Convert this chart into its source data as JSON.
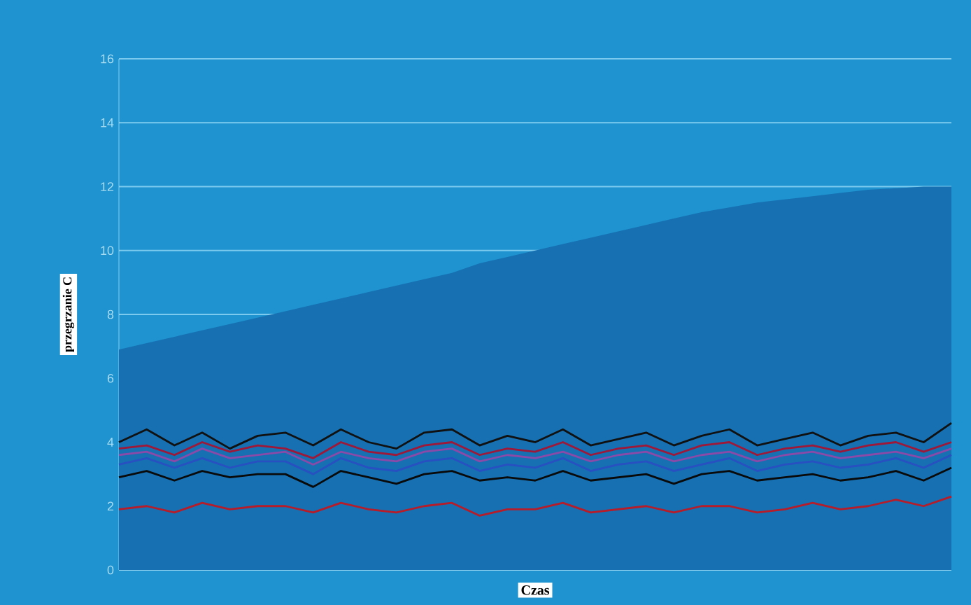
{
  "chart_data": {
    "type": "line",
    "xlabel": "Czas",
    "ylabel": "przegrzanie C",
    "categories": [
      null,
      null,
      null,
      null,
      null,
      null,
      null,
      null,
      null,
      null,
      null,
      null,
      null,
      null,
      null,
      null,
      null,
      null,
      null,
      null,
      null,
      null,
      null,
      null,
      null,
      null,
      null,
      null,
      null,
      null,
      null
    ],
    "ylim": [
      0,
      16
    ],
    "yticks": [
      0,
      2,
      4,
      6,
      8,
      10,
      12,
      14,
      16
    ],
    "grid": "y",
    "marker": "none",
    "line_style": "solid",
    "series": [
      {
        "type": "area",
        "color": "#1670b2",
        "values": [
          6.9,
          7.1,
          7.3,
          7.5,
          7.7,
          7.9,
          8.1,
          8.3,
          8.5,
          8.7,
          8.9,
          9.1,
          9.3,
          9.6,
          9.8,
          10.0,
          10.2,
          10.4,
          10.6,
          10.8,
          11.0,
          11.2,
          11.35,
          11.5,
          11.6,
          11.7,
          11.8,
          11.9,
          11.95,
          12.0,
          12.0
        ]
      },
      {
        "color": "#111111",
        "values": [
          4.0,
          4.4,
          3.9,
          4.3,
          3.8,
          4.2,
          4.3,
          3.9,
          4.4,
          4.0,
          3.8,
          4.3,
          4.4,
          3.9,
          4.2,
          4.0,
          4.4,
          3.9,
          4.1,
          4.3,
          3.9,
          4.2,
          4.4,
          3.9,
          4.1,
          4.3,
          3.9,
          4.2,
          4.3,
          4.0,
          4.6
        ]
      },
      {
        "color": "#a01838",
        "values": [
          3.8,
          3.9,
          3.6,
          4.0,
          3.7,
          3.9,
          3.8,
          3.5,
          4.0,
          3.7,
          3.6,
          3.9,
          4.0,
          3.6,
          3.8,
          3.7,
          4.0,
          3.6,
          3.8,
          3.9,
          3.6,
          3.9,
          4.0,
          3.6,
          3.8,
          3.9,
          3.7,
          3.9,
          4.0,
          3.7,
          4.0
        ]
      },
      {
        "color": "#8a4aa8",
        "values": [
          3.6,
          3.7,
          3.4,
          3.8,
          3.5,
          3.6,
          3.7,
          3.3,
          3.7,
          3.5,
          3.4,
          3.7,
          3.8,
          3.4,
          3.6,
          3.5,
          3.7,
          3.4,
          3.6,
          3.7,
          3.4,
          3.6,
          3.7,
          3.4,
          3.6,
          3.7,
          3.5,
          3.6,
          3.7,
          3.5,
          3.8
        ]
      },
      {
        "color": "#2850c0",
        "values": [
          3.3,
          3.5,
          3.2,
          3.5,
          3.2,
          3.4,
          3.4,
          3.0,
          3.5,
          3.2,
          3.1,
          3.4,
          3.5,
          3.1,
          3.3,
          3.2,
          3.5,
          3.1,
          3.3,
          3.4,
          3.1,
          3.3,
          3.5,
          3.1,
          3.3,
          3.4,
          3.2,
          3.3,
          3.5,
          3.2,
          3.6
        ]
      },
      {
        "color": "#0a0a0a",
        "values": [
          2.9,
          3.1,
          2.8,
          3.1,
          2.9,
          3.0,
          3.0,
          2.6,
          3.1,
          2.9,
          2.7,
          3.0,
          3.1,
          2.8,
          2.9,
          2.8,
          3.1,
          2.8,
          2.9,
          3.0,
          2.7,
          3.0,
          3.1,
          2.8,
          2.9,
          3.0,
          2.8,
          2.9,
          3.1,
          2.8,
          3.2
        ]
      },
      {
        "color": "#b81c28",
        "values": [
          1.9,
          2.0,
          1.8,
          2.1,
          1.9,
          2.0,
          2.0,
          1.8,
          2.1,
          1.9,
          1.8,
          2.0,
          2.1,
          1.7,
          1.9,
          1.9,
          2.1,
          1.8,
          1.9,
          2.0,
          1.8,
          2.0,
          2.0,
          1.8,
          1.9,
          2.1,
          1.9,
          2.0,
          2.2,
          2.0,
          2.3
        ]
      }
    ]
  }
}
